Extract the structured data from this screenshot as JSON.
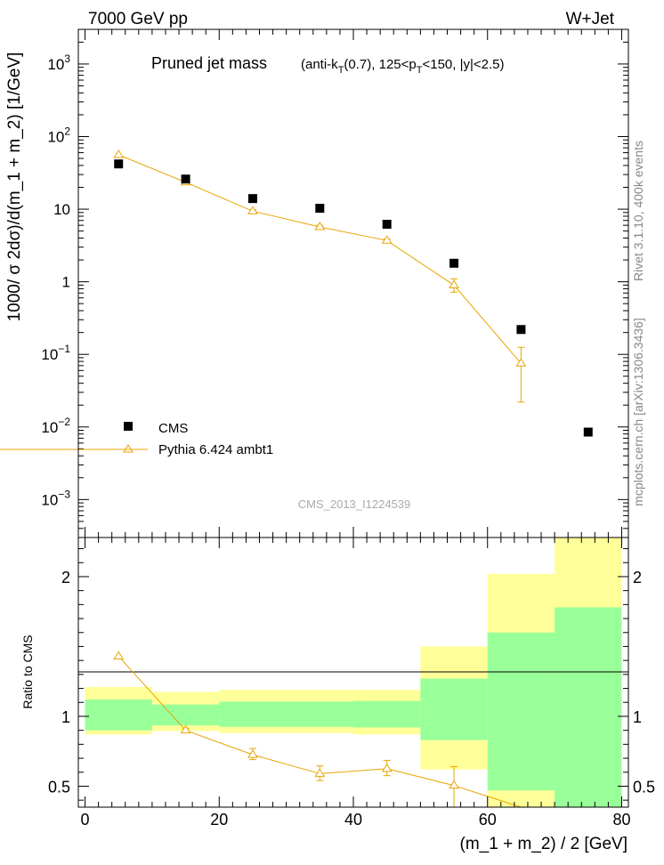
{
  "header": {
    "left": "7000 GeV pp",
    "right": "W+Jet"
  },
  "side_labels": {
    "rivet": "Rivet 3.1.10,  400k events",
    "mcplots": "mcplots.cern.ch [arXiv:1306.3436]"
  },
  "chart_data": [
    {
      "type": "scatter",
      "panel": "main",
      "title": "Pruned jet mass",
      "subtitle": {
        "t1": "(anti-k",
        "sub1": "T",
        "t2": "(0.7), 125<p",
        "sub2": "T",
        "t3": "<150, |y|<2.5)"
      },
      "ylabel": "1000/ σ 2dσ)/d(m_1 + m_2) [1/GeV]",
      "yscale": "log",
      "ylim": [
        0.0003,
        3000
      ],
      "xlim": [
        -1,
        81
      ],
      "y_ticks": [
        {
          "v": 0.001,
          "base": "10",
          "exp": "−3"
        },
        {
          "v": 0.01,
          "base": "10",
          "exp": "−2"
        },
        {
          "v": 0.1,
          "base": "10",
          "exp": "−1"
        },
        {
          "v": 1,
          "base": "1",
          "exp": ""
        },
        {
          "v": 10,
          "base": "10",
          "exp": ""
        },
        {
          "v": 100,
          "base": "10",
          "exp": "2"
        },
        {
          "v": 1000,
          "base": "10",
          "exp": "3"
        }
      ],
      "watermark": "CMS_2013_I1224539",
      "legend_position": "lower-left",
      "series": [
        {
          "name": "CMS",
          "style": "square",
          "color": "#000000",
          "points": [
            {
              "x": 5,
              "y": 42
            },
            {
              "x": 15,
              "y": 26
            },
            {
              "x": 25,
              "y": 14
            },
            {
              "x": 35,
              "y": 10.3
            },
            {
              "x": 45,
              "y": 6.2
            },
            {
              "x": 55,
              "y": 1.8
            },
            {
              "x": 65,
              "y": 0.22
            },
            {
              "x": 75,
              "y": 0.0085
            }
          ]
        },
        {
          "name": "Pythia 6.424 ambt1",
          "style": "triangle-line",
          "color": "#e8a500",
          "points": [
            {
              "x": 5,
              "y": 56,
              "lo": 56,
              "hi": 56
            },
            {
              "x": 15,
              "y": 23.5,
              "lo": 23.5,
              "hi": 23.5
            },
            {
              "x": 25,
              "y": 9.4,
              "lo": 9.0,
              "hi": 9.8
            },
            {
              "x": 35,
              "y": 5.7,
              "lo": 5.4,
              "hi": 6.0
            },
            {
              "x": 45,
              "y": 3.7,
              "lo": 3.5,
              "hi": 3.9
            },
            {
              "x": 55,
              "y": 0.9,
              "lo": 0.72,
              "hi": 1.1
            },
            {
              "x": 65,
              "y": 0.075,
              "lo": 0.022,
              "hi": 0.125
            }
          ]
        }
      ]
    },
    {
      "type": "line",
      "panel": "ratio",
      "ylabel": "Ratio to CMS",
      "xlabel": "(m_1 + m_2) / 2 [GeV]",
      "ylim": [
        0.35,
        2.28
      ],
      "xlim": [
        -1,
        81
      ],
      "x_ticks": [
        0,
        20,
        40,
        60,
        80
      ],
      "y_ticks": [
        0.5,
        1,
        2
      ],
      "bands": [
        {
          "x0": 0,
          "x1": 10,
          "inner": [
            0.9,
            1.12
          ],
          "outer": [
            0.87,
            1.21
          ]
        },
        {
          "x0": 10,
          "x1": 20,
          "inner": [
            0.935,
            1.085
          ],
          "outer": [
            0.895,
            1.175
          ]
        },
        {
          "x0": 20,
          "x1": 40,
          "inner": [
            0.925,
            1.105
          ],
          "outer": [
            0.88,
            1.19
          ]
        },
        {
          "x0": 40,
          "x1": 50,
          "inner": [
            0.92,
            1.11
          ],
          "outer": [
            0.87,
            1.19
          ]
        },
        {
          "x0": 50,
          "x1": 60,
          "inner": [
            0.83,
            1.27
          ],
          "outer": [
            0.62,
            1.5
          ]
        },
        {
          "x0": 60,
          "x1": 70,
          "inner": [
            0.47,
            1.6
          ],
          "outer": [
            0.2,
            2.02
          ]
        },
        {
          "x0": 70,
          "x1": 80,
          "inner": [
            0.3,
            1.78
          ],
          "outer": [
            0.2,
            2.3
          ]
        }
      ],
      "series": [
        {
          "name": "Pythia 6.424 ambt1",
          "color": "#e8a500",
          "points": [
            {
              "x": 5,
              "y": 1.43,
              "lo": 1.43,
              "hi": 1.43
            },
            {
              "x": 15,
              "y": 0.9,
              "lo": 0.89,
              "hi": 0.915
            },
            {
              "x": 25,
              "y": 0.725,
              "lo": 0.69,
              "hi": 0.77
            },
            {
              "x": 35,
              "y": 0.59,
              "lo": 0.54,
              "hi": 0.645
            },
            {
              "x": 45,
              "y": 0.625,
              "lo": 0.575,
              "hi": 0.685
            },
            {
              "x": 55,
              "y": 0.505,
              "lo": 0.35,
              "hi": 0.64
            },
            {
              "x": 65,
              "y": 0.33,
              "lo": 0.33,
              "hi": 0.33
            }
          ]
        }
      ]
    }
  ]
}
